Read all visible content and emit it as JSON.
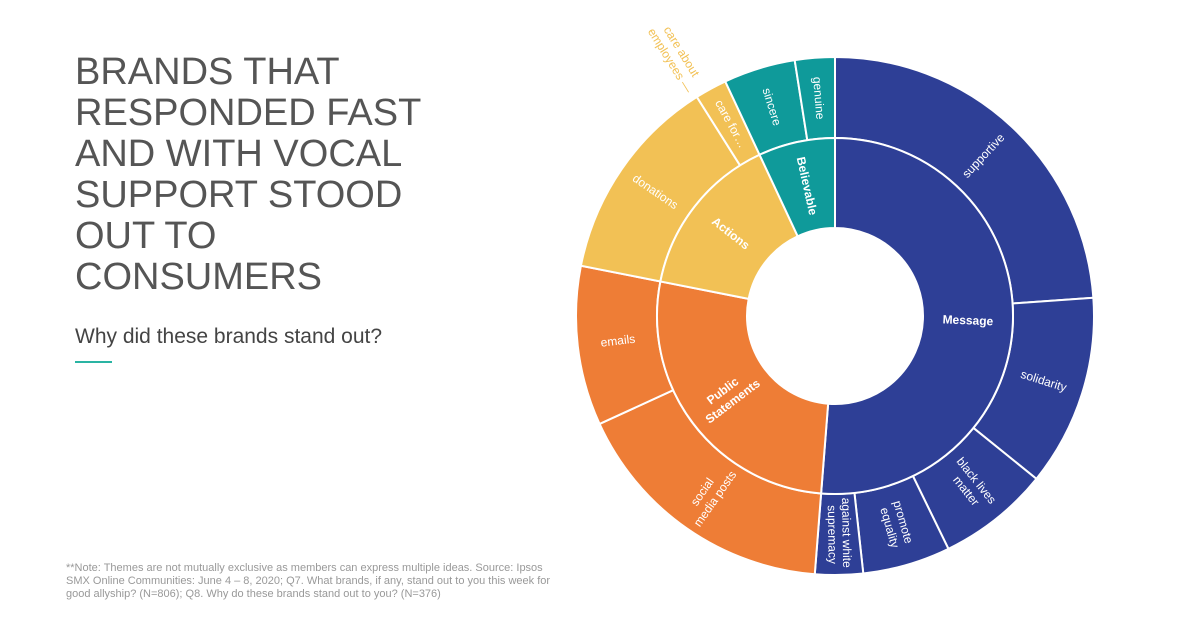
{
  "chart_data": {
    "type": "sunburst",
    "title": "BRANDS THAT RESPONDED FAST AND WITH VOCAL SUPPORT STOOD OUT TO CONSUMERS",
    "subtitle": "Why did these brands stand out?",
    "note": "**Note: Themes are not mutually exclusive as members can express multiple ideas. Source: Ipsos SMX Online Communities: June 4 – 8, 2020; Q7. What brands, if any, stand out to you this week for good allyship? (N=806); Q8.  Why do these brands stand out to you? (N=376)",
    "groups": [
      {
        "name": "Message",
        "color": "#2e3f96",
        "children": [
          {
            "name": "supportive",
            "value": 24
          },
          {
            "name": "solidarity",
            "value": 12
          },
          {
            "name": "black lives matter",
            "value": 7
          },
          {
            "name": "promote equality",
            "value": 5.5
          },
          {
            "name": "against white supremacy",
            "value": 3
          }
        ]
      },
      {
        "name": "Public Statements",
        "color": "#ee7d36",
        "children": [
          {
            "name": "social media posts",
            "value": 17
          },
          {
            "name": "emails",
            "value": 10
          }
        ]
      },
      {
        "name": "Actions",
        "color": "#f2c155",
        "children": [
          {
            "name": "donations",
            "value": 13
          },
          {
            "name": "care for…",
            "value": 2
          }
        ]
      },
      {
        "name": "Believable",
        "color": "#0f9a9a",
        "children": [
          {
            "name": "sincere",
            "value": 4.5
          },
          {
            "name": "genuine",
            "value": 2.5
          }
        ]
      }
    ],
    "callout": "care about employees —"
  }
}
